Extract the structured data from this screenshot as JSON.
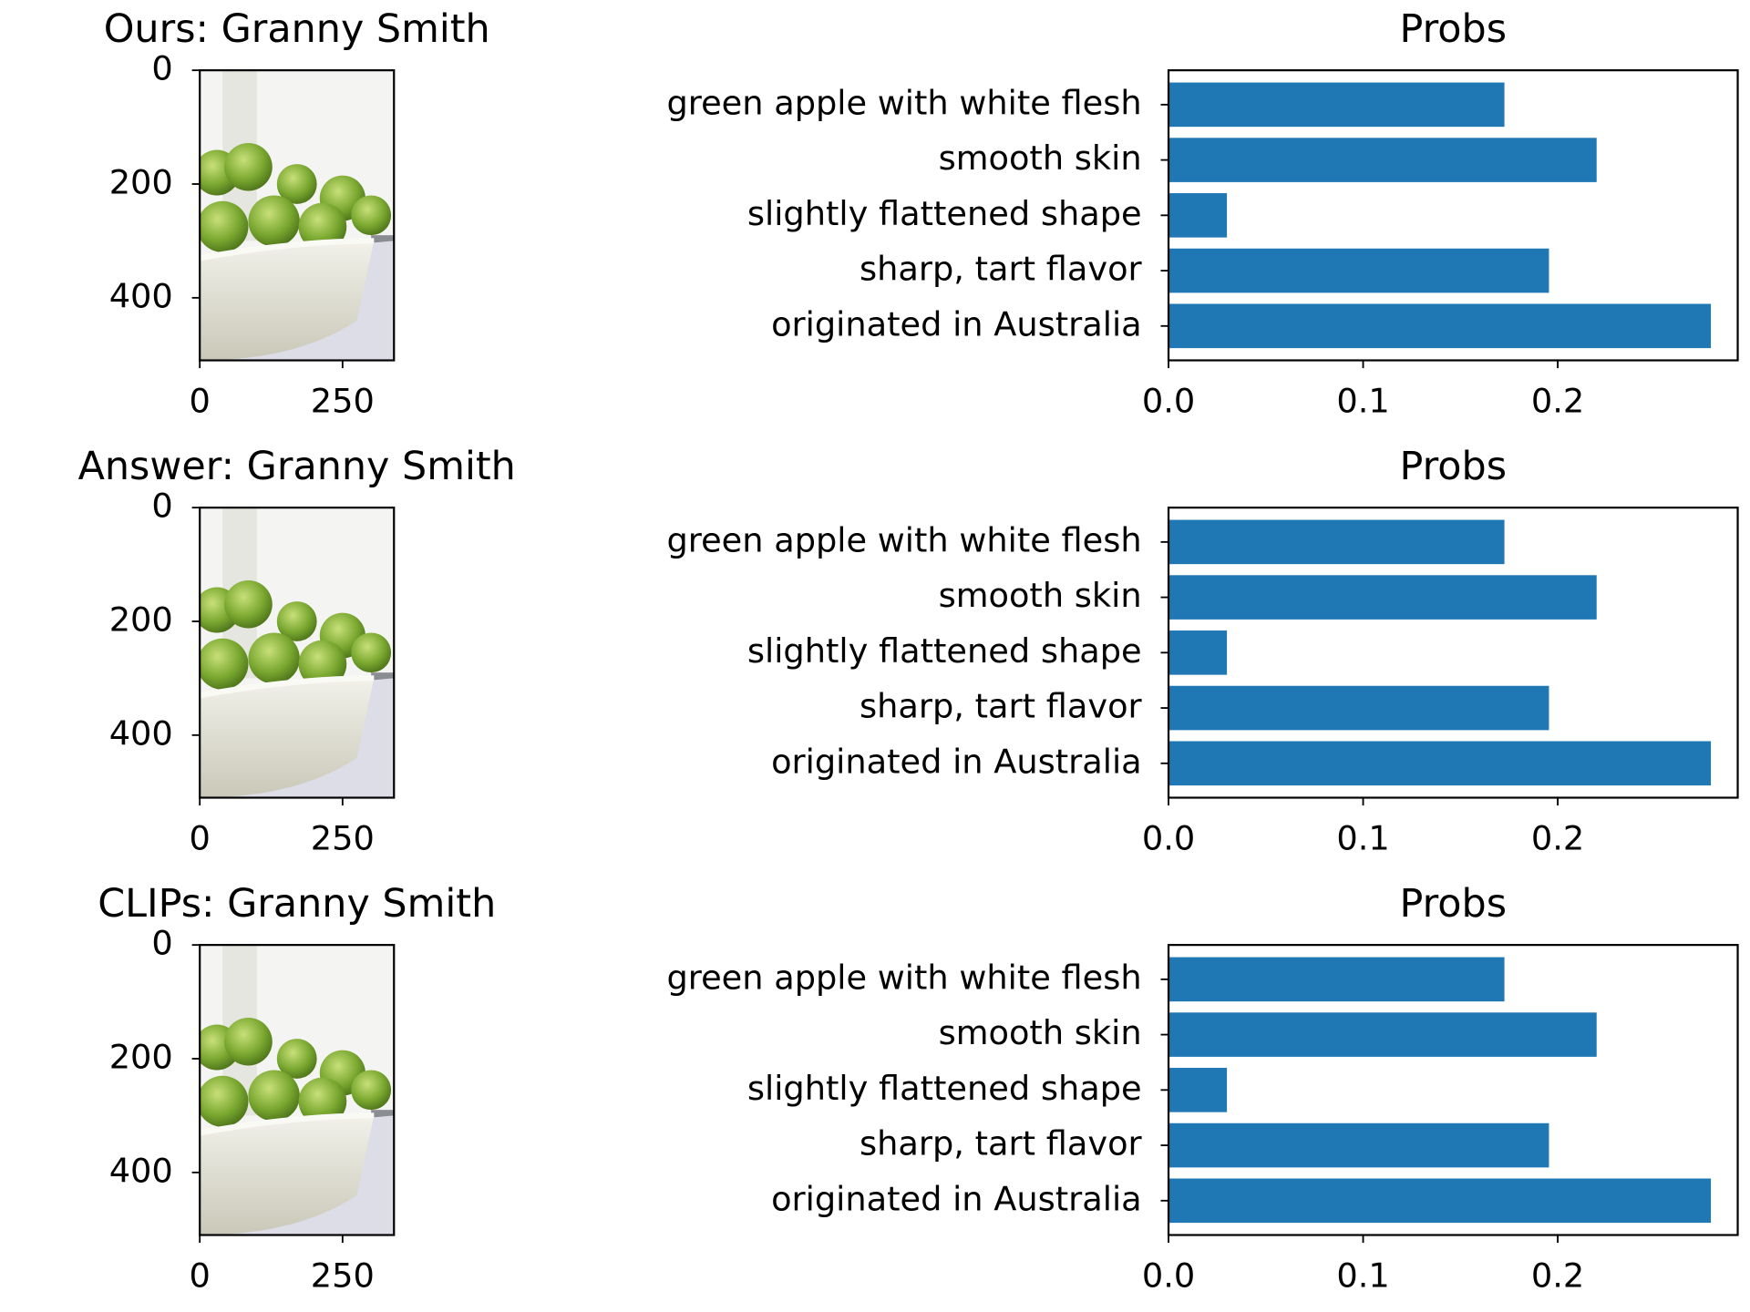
{
  "chart_data": [
    {
      "type": "image",
      "title": "Ours: Granny Smith",
      "xlim": [
        0,
        340
      ],
      "ylim": [
        510,
        0
      ],
      "xticks": [
        0,
        250
      ],
      "yticks": [
        0,
        200,
        400
      ]
    },
    {
      "type": "bar",
      "title": "Probs",
      "categories": [
        "green apple with white flesh",
        "smooth skin",
        "slightly flattened shape",
        "sharp, tart flavor",
        "originated in Australia"
      ],
      "values": [
        0.1726,
        0.22,
        0.03,
        0.1955,
        0.2787
      ],
      "color": "#1f77b4",
      "xlim": [
        0,
        0.2925
      ],
      "xticks": [
        {
          "value": 0,
          "label": "0.0"
        },
        {
          "value": 0.1,
          "label": "0.1"
        },
        {
          "value": 0.2,
          "label": "0.2"
        }
      ]
    },
    {
      "type": "image",
      "title": "Answer: Granny Smith",
      "xlim": [
        0,
        340
      ],
      "ylim": [
        510,
        0
      ],
      "xticks": [
        0,
        250
      ],
      "yticks": [
        0,
        200,
        400
      ]
    },
    {
      "type": "bar",
      "title": "Probs",
      "categories": [
        "green apple with white flesh",
        "smooth skin",
        "slightly flattened shape",
        "sharp, tart flavor",
        "originated in Australia"
      ],
      "values": [
        0.1726,
        0.22,
        0.03,
        0.1955,
        0.2787
      ],
      "color": "#1f77b4",
      "xlim": [
        0,
        0.2925
      ],
      "xticks": [
        {
          "value": 0,
          "label": "0.0"
        },
        {
          "value": 0.1,
          "label": "0.1"
        },
        {
          "value": 0.2,
          "label": "0.2"
        }
      ]
    },
    {
      "type": "image",
      "title": "CLIPs: Granny Smith",
      "xlim": [
        0,
        340
      ],
      "ylim": [
        510,
        0
      ],
      "xticks": [
        0,
        250
      ],
      "yticks": [
        0,
        200,
        400
      ]
    },
    {
      "type": "bar",
      "title": "Probs",
      "categories": [
        "green apple with white flesh",
        "smooth skin",
        "slightly flattened shape",
        "sharp, tart flavor",
        "originated in Australia"
      ],
      "values": [
        0.1726,
        0.22,
        0.03,
        0.1955,
        0.2787
      ],
      "color": "#1f77b4",
      "xlim": [
        0,
        0.2925
      ],
      "xticks": [
        {
          "value": 0,
          "label": "0.0"
        },
        {
          "value": 0.1,
          "label": "0.1"
        },
        {
          "value": 0.2,
          "label": "0.2"
        }
      ]
    }
  ]
}
